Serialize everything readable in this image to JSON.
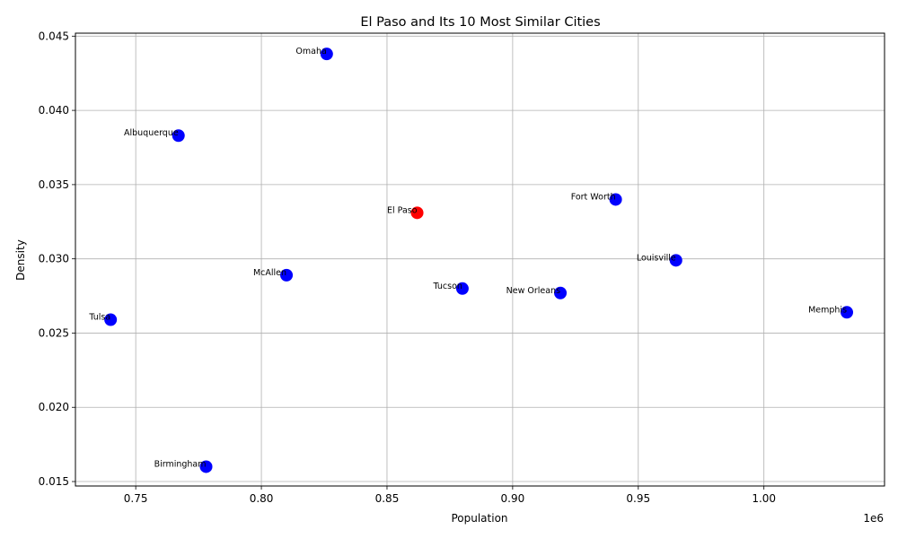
{
  "chart_data": {
    "type": "scatter",
    "title": "El Paso and Its 10 Most Similar Cities",
    "xlabel": "Population",
    "ylabel": "Density",
    "x_offset_label": "1e6",
    "xlim": [
      0.726,
      1.048
    ],
    "ylim": [
      0.0147,
      0.0452
    ],
    "x_ticks": [
      0.75,
      0.8,
      0.85,
      0.9,
      0.95,
      1.0
    ],
    "x_tick_labels": [
      "0.75",
      "0.80",
      "0.85",
      "0.90",
      "0.95",
      "1.00"
    ],
    "y_ticks": [
      0.015,
      0.02,
      0.025,
      0.03,
      0.035,
      0.04,
      0.045
    ],
    "y_tick_labels": [
      "0.015",
      "0.020",
      "0.025",
      "0.030",
      "0.035",
      "0.040",
      "0.045"
    ],
    "grid": true,
    "highlight_color": "#ff0000",
    "default_color": "#0000ff",
    "points": [
      {
        "label": "Omaha",
        "x": 0.826,
        "y": 0.0438,
        "highlight": false
      },
      {
        "label": "Albuquerque",
        "x": 0.767,
        "y": 0.0383,
        "highlight": false
      },
      {
        "label": "Fort Worth",
        "x": 0.941,
        "y": 0.034,
        "highlight": false
      },
      {
        "label": "El Paso",
        "x": 0.862,
        "y": 0.0331,
        "highlight": true
      },
      {
        "label": "Louisville",
        "x": 0.965,
        "y": 0.0299,
        "highlight": false
      },
      {
        "label": "McAllen",
        "x": 0.81,
        "y": 0.0289,
        "highlight": false
      },
      {
        "label": "Tucson",
        "x": 0.88,
        "y": 0.028,
        "highlight": false
      },
      {
        "label": "New Orleans",
        "x": 0.919,
        "y": 0.0277,
        "highlight": false
      },
      {
        "label": "Memphis",
        "x": 1.033,
        "y": 0.0264,
        "highlight": false
      },
      {
        "label": "Tulsa",
        "x": 0.74,
        "y": 0.0259,
        "highlight": false
      },
      {
        "label": "Birmingham",
        "x": 0.778,
        "y": 0.016,
        "highlight": false
      }
    ]
  }
}
